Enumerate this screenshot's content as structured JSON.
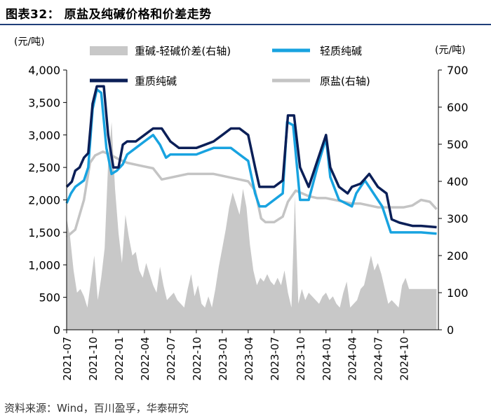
{
  "title": "图表32： 原盐及纯碱价格和价差走势",
  "source": "资料来源：Wind，百川盈孚，华泰研究",
  "chart_data": {
    "type": "line+area",
    "left_unit": "(元/吨)",
    "right_unit": "(元/吨)",
    "left_ylim": [
      0,
      4000
    ],
    "left_ticks": [
      0,
      500,
      1000,
      1500,
      2000,
      2500,
      3000,
      3500,
      4000
    ],
    "left_tick_labels": [
      "0",
      "500",
      "1,000",
      "1,500",
      "2,000",
      "2,500",
      "3,000",
      "3,500",
      "4,000"
    ],
    "right_ylim": [
      0,
      700
    ],
    "right_ticks": [
      0,
      100,
      200,
      300,
      400,
      500,
      600,
      700
    ],
    "right_tick_labels": [
      "0",
      "100",
      "200",
      "300",
      "400",
      "500",
      "600",
      "700"
    ],
    "x_range": [
      0,
      43
    ],
    "x_ticks": [
      0,
      3,
      6,
      9,
      12,
      15,
      18,
      21,
      24,
      27,
      30,
      33,
      36,
      39
    ],
    "x_tick_labels": [
      "2021-07",
      "2021-10",
      "2022-01",
      "2022-04",
      "2022-07",
      "2022-10",
      "2023-01",
      "2023-04",
      "2023-07",
      "2023-10",
      "2024-01",
      "2024-04",
      "2024-07",
      "2024-10"
    ],
    "legend": [
      "重碱-轻碱价差(右轴)",
      "轻质纯碱",
      "重质纯碱",
      "原盐(右轴)"
    ],
    "colors": {
      "spread": "#c8c8c8",
      "light": "#18a3e0",
      "heavy": "#0b1f57",
      "salt": "#c4c4c4"
    },
    "series": [
      {
        "name": "重质纯碱",
        "axis": "left",
        "points": [
          [
            0,
            2200
          ],
          [
            0.6,
            2280
          ],
          [
            1,
            2450
          ],
          [
            1.5,
            2500
          ],
          [
            2,
            2650
          ],
          [
            2.5,
            2720
          ],
          [
            3,
            3480
          ],
          [
            3.5,
            3750
          ],
          [
            4.3,
            3750
          ],
          [
            4.8,
            3000
          ],
          [
            5.4,
            2500
          ],
          [
            6,
            2500
          ],
          [
            6.5,
            2850
          ],
          [
            7,
            2900
          ],
          [
            8,
            2900
          ],
          [
            9,
            3000
          ],
          [
            10,
            3100
          ],
          [
            11,
            3100
          ],
          [
            12,
            2900
          ],
          [
            13,
            2800
          ],
          [
            14,
            2800
          ],
          [
            15,
            2800
          ],
          [
            16,
            2850
          ],
          [
            17,
            2900
          ],
          [
            18,
            3000
          ],
          [
            19,
            3100
          ],
          [
            20,
            3100
          ],
          [
            21,
            3000
          ],
          [
            21.8,
            2500
          ],
          [
            22.3,
            2200
          ],
          [
            23,
            2200
          ],
          [
            24,
            2200
          ],
          [
            25,
            2300
          ],
          [
            25.6,
            3300
          ],
          [
            26.3,
            3300
          ],
          [
            27,
            2500
          ],
          [
            28,
            2200
          ],
          [
            29,
            2600
          ],
          [
            30,
            3000
          ],
          [
            30.5,
            2500
          ],
          [
            31.5,
            2200
          ],
          [
            32.5,
            2100
          ],
          [
            33,
            2200
          ],
          [
            34,
            2250
          ],
          [
            35,
            2400
          ],
          [
            36,
            2200
          ],
          [
            37,
            2100
          ],
          [
            37.6,
            1700
          ],
          [
            38.5,
            1650
          ],
          [
            40,
            1600
          ],
          [
            41,
            1600
          ],
          [
            42.8,
            1580
          ]
        ]
      },
      {
        "name": "轻质纯碱",
        "axis": "left",
        "points": [
          [
            0,
            1950
          ],
          [
            0.5,
            2100
          ],
          [
            1,
            2200
          ],
          [
            2,
            2300
          ],
          [
            2.5,
            2500
          ],
          [
            3,
            3400
          ],
          [
            3.5,
            3700
          ],
          [
            4,
            3650
          ],
          [
            4.6,
            2800
          ],
          [
            5.2,
            2400
          ],
          [
            5.8,
            2450
          ],
          [
            6.5,
            2550
          ],
          [
            7,
            2700
          ],
          [
            8,
            2800
          ],
          [
            9,
            2900
          ],
          [
            10,
            3000
          ],
          [
            10.8,
            2850
          ],
          [
            11.5,
            2650
          ],
          [
            12,
            2700
          ],
          [
            13,
            2700
          ],
          [
            14,
            2700
          ],
          [
            15,
            2700
          ],
          [
            16,
            2750
          ],
          [
            17,
            2800
          ],
          [
            18,
            2800
          ],
          [
            19,
            2800
          ],
          [
            20,
            2700
          ],
          [
            21,
            2600
          ],
          [
            21.8,
            2100
          ],
          [
            22.3,
            1900
          ],
          [
            23,
            1900
          ],
          [
            24,
            2000
          ],
          [
            25,
            2100
          ],
          [
            25.5,
            3200
          ],
          [
            26.2,
            3150
          ],
          [
            27,
            2000
          ],
          [
            28,
            2000
          ],
          [
            29,
            2500
          ],
          [
            30,
            2950
          ],
          [
            30.5,
            2350
          ],
          [
            31.5,
            2000
          ],
          [
            33,
            1900
          ],
          [
            33.5,
            2100
          ],
          [
            34.5,
            2300
          ],
          [
            35,
            2200
          ],
          [
            36,
            2000
          ],
          [
            36.5,
            1900
          ],
          [
            37.5,
            1500
          ],
          [
            38.5,
            1500
          ],
          [
            40,
            1500
          ],
          [
            41,
            1500
          ],
          [
            42.8,
            1480
          ]
        ]
      },
      {
        "name": "原盐(右轴)",
        "axis": "right",
        "points": [
          [
            0,
            250
          ],
          [
            1,
            270
          ],
          [
            2,
            350
          ],
          [
            2.7,
            450
          ],
          [
            3.3,
            470
          ],
          [
            4.2,
            480
          ],
          [
            5.2,
            470
          ],
          [
            6,
            460
          ],
          [
            7,
            450
          ],
          [
            8,
            445
          ],
          [
            9,
            440
          ],
          [
            10,
            435
          ],
          [
            11,
            405
          ],
          [
            12,
            410
          ],
          [
            13,
            415
          ],
          [
            14,
            420
          ],
          [
            15,
            420
          ],
          [
            16,
            420
          ],
          [
            17,
            420
          ],
          [
            18,
            415
          ],
          [
            19,
            410
          ],
          [
            20,
            405
          ],
          [
            21,
            400
          ],
          [
            21.8,
            375
          ],
          [
            22.5,
            300
          ],
          [
            23,
            290
          ],
          [
            24,
            290
          ],
          [
            25,
            305
          ],
          [
            25.6,
            345
          ],
          [
            26.5,
            375
          ],
          [
            27,
            370
          ],
          [
            28,
            360
          ],
          [
            29,
            355
          ],
          [
            30,
            355
          ],
          [
            31,
            350
          ],
          [
            32,
            345
          ],
          [
            33,
            340
          ],
          [
            34,
            340
          ],
          [
            35,
            335
          ],
          [
            36,
            330
          ],
          [
            37,
            330
          ],
          [
            38,
            330
          ],
          [
            39,
            330
          ],
          [
            40,
            335
          ],
          [
            41,
            350
          ],
          [
            42,
            345
          ],
          [
            42.8,
            325
          ]
        ]
      },
      {
        "name": "重碱-轻碱价差(右轴)",
        "axis": "right",
        "points": [
          [
            0,
            300
          ],
          [
            0.4,
            250
          ],
          [
            0.8,
            160
          ],
          [
            1.2,
            100
          ],
          [
            1.6,
            110
          ],
          [
            2,
            90
          ],
          [
            2.4,
            60
          ],
          [
            2.8,
            130
          ],
          [
            3.2,
            200
          ],
          [
            3.6,
            80
          ],
          [
            4,
            140
          ],
          [
            4.4,
            220
          ],
          [
            4.8,
            450
          ],
          [
            5.2,
            560
          ],
          [
            5.6,
            380
          ],
          [
            6,
            260
          ],
          [
            6.4,
            180
          ],
          [
            6.8,
            310
          ],
          [
            7.2,
            250
          ],
          [
            7.6,
            200
          ],
          [
            8,
            210
          ],
          [
            8.4,
            160
          ],
          [
            8.8,
            140
          ],
          [
            9.2,
            180
          ],
          [
            9.6,
            150
          ],
          [
            10,
            120
          ],
          [
            10.4,
            100
          ],
          [
            10.8,
            170
          ],
          [
            11.2,
            120
          ],
          [
            11.6,
            80
          ],
          [
            12,
            90
          ],
          [
            12.4,
            100
          ],
          [
            12.8,
            80
          ],
          [
            13.2,
            70
          ],
          [
            13.6,
            60
          ],
          [
            14,
            110
          ],
          [
            14.4,
            150
          ],
          [
            14.8,
            90
          ],
          [
            15.2,
            120
          ],
          [
            15.6,
            70
          ],
          [
            16,
            60
          ],
          [
            16.4,
            90
          ],
          [
            16.8,
            60
          ],
          [
            17.2,
            110
          ],
          [
            17.6,
            170
          ],
          [
            18,
            220
          ],
          [
            18.4,
            270
          ],
          [
            18.8,
            330
          ],
          [
            19.2,
            370
          ],
          [
            19.6,
            340
          ],
          [
            20,
            310
          ],
          [
            20.4,
            380
          ],
          [
            20.8,
            330
          ],
          [
            21.2,
            230
          ],
          [
            21.6,
            160
          ],
          [
            22,
            120
          ],
          [
            22.4,
            140
          ],
          [
            22.8,
            130
          ],
          [
            23.2,
            150
          ],
          [
            23.6,
            130
          ],
          [
            24,
            120
          ],
          [
            24.4,
            140
          ],
          [
            24.8,
            120
          ],
          [
            25.2,
            160
          ],
          [
            25.6,
            100
          ],
          [
            26,
            60
          ],
          [
            26.4,
            360
          ],
          [
            26.8,
            70
          ],
          [
            27.2,
            110
          ],
          [
            27.6,
            80
          ],
          [
            28,
            100
          ],
          [
            28.4,
            90
          ],
          [
            28.8,
            80
          ],
          [
            29.2,
            70
          ],
          [
            29.6,
            90
          ],
          [
            30,
            100
          ],
          [
            30.4,
            80
          ],
          [
            30.8,
            90
          ],
          [
            31.2,
            70
          ],
          [
            31.6,
            60
          ],
          [
            32,
            100
          ],
          [
            32.4,
            130
          ],
          [
            32.8,
            60
          ],
          [
            33.2,
            70
          ],
          [
            33.6,
            80
          ],
          [
            34,
            110
          ],
          [
            34.4,
            120
          ],
          [
            34.8,
            160
          ],
          [
            35.2,
            200
          ],
          [
            35.6,
            160
          ],
          [
            36,
            180
          ],
          [
            36.4,
            150
          ],
          [
            36.8,
            110
          ],
          [
            37.2,
            70
          ],
          [
            37.6,
            80
          ],
          [
            38,
            70
          ],
          [
            38.4,
            60
          ],
          [
            38.8,
            120
          ],
          [
            39.2,
            140
          ],
          [
            39.6,
            110
          ],
          [
            40,
            110
          ],
          [
            40.4,
            110
          ],
          [
            40.8,
            110
          ],
          [
            41.2,
            110
          ],
          [
            41.6,
            110
          ],
          [
            42,
            110
          ],
          [
            42.4,
            110
          ],
          [
            42.8,
            110
          ]
        ]
      }
    ]
  }
}
